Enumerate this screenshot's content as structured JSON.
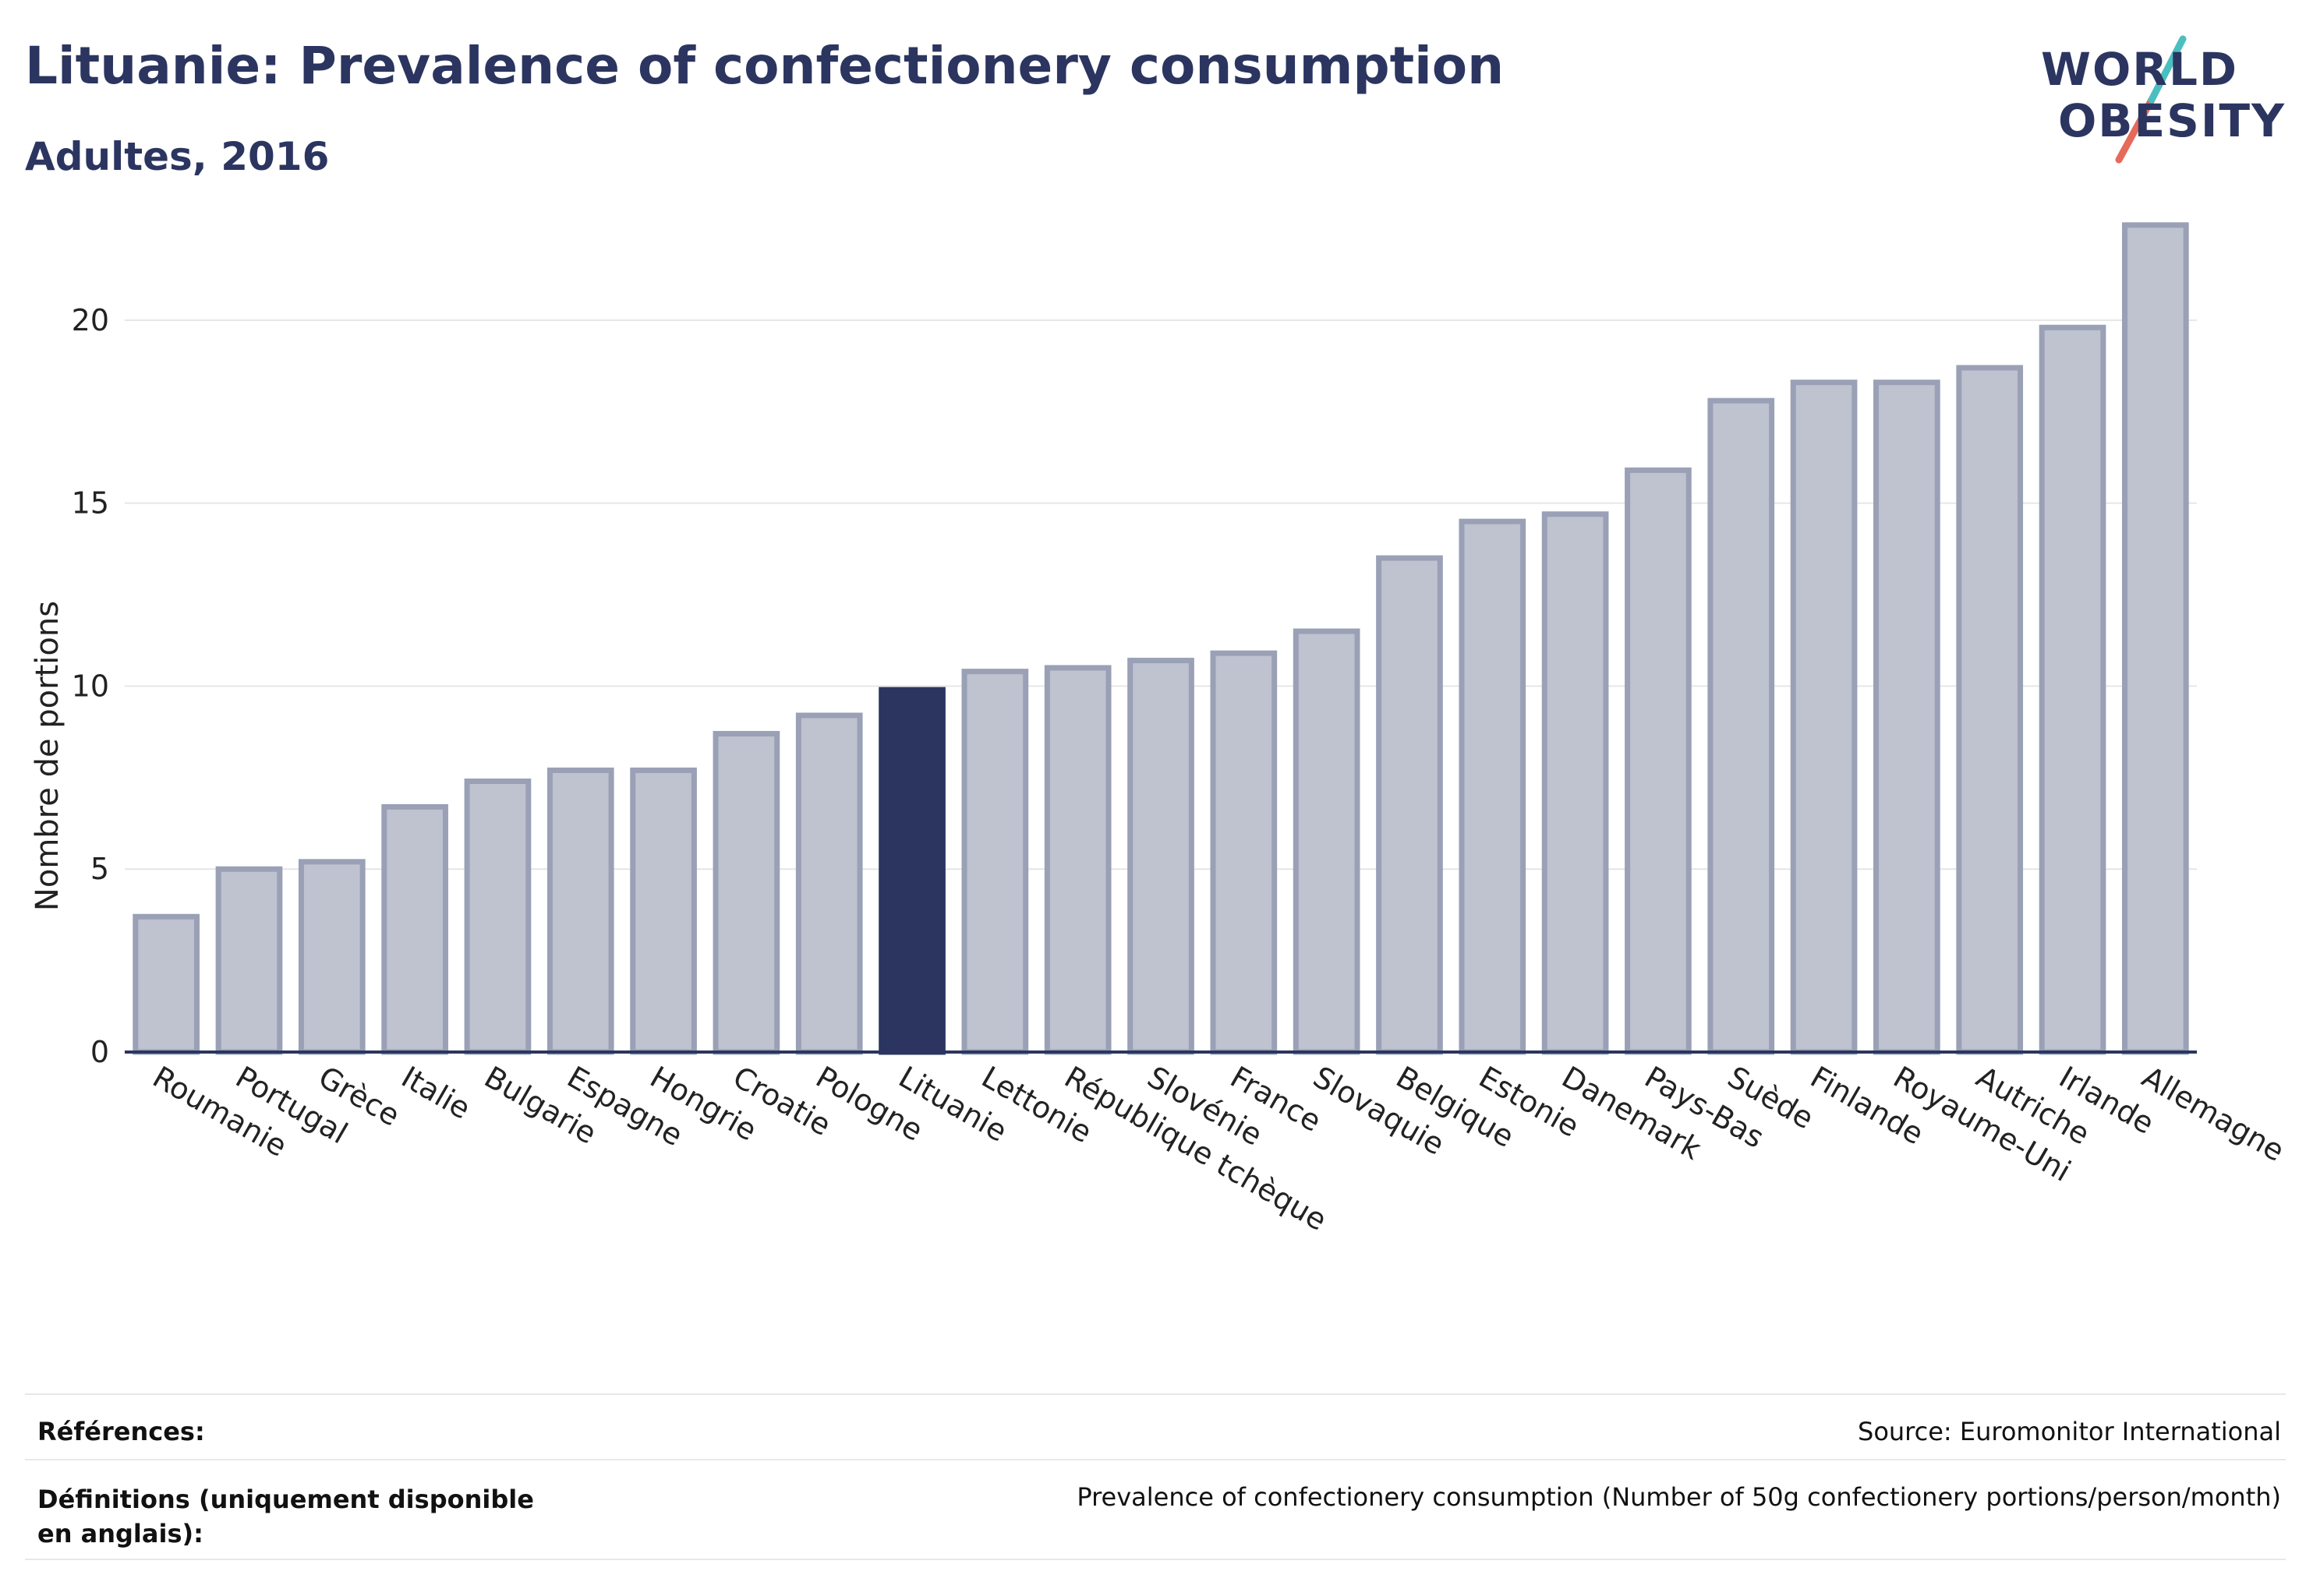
{
  "header": {
    "title": "Lituanie: Prevalence of confectionery consumption",
    "subtitle": "Adultes, 2016"
  },
  "logo": {
    "line1": "WORLD",
    "line2": "OBESITY",
    "slash_colors": [
      "#4bbfbf",
      "#e56a5a"
    ]
  },
  "colors": {
    "bar": "#bfc2cf",
    "bar_border": "#9aa0b5",
    "highlight": "#2b3560",
    "axis": "#2b3560",
    "grid": "#e6e6e6"
  },
  "chart_data": {
    "type": "bar",
    "ylabel": "Nombre de portions",
    "ylim": [
      0,
      23
    ],
    "yticks": [
      0,
      5,
      10,
      15,
      20
    ],
    "grid": true,
    "highlight": "Lituanie",
    "categories": [
      "Roumanie",
      "Portugal",
      "Grèce",
      "Italie",
      "Bulgarie",
      "Espagne",
      "Hongrie",
      "Croatie",
      "Pologne",
      "Lituanie",
      "Lettonie",
      "République tchèque",
      "Slovénie",
      "France",
      "Slovaquie",
      "Belgique",
      "Estonie",
      "Danemark",
      "Pays-Bas",
      "Suède",
      "Finlande",
      "Royaume-Uni",
      "Autriche",
      "Irlande",
      "Allemagne"
    ],
    "values": [
      3.7,
      5.0,
      5.2,
      6.7,
      7.4,
      7.7,
      7.7,
      8.7,
      9.2,
      9.9,
      10.4,
      10.5,
      10.7,
      10.9,
      11.5,
      13.5,
      14.5,
      14.7,
      15.9,
      17.8,
      18.3,
      18.3,
      18.7,
      19.8,
      22.6
    ]
  },
  "footer": {
    "references_label": "Références:",
    "references_value": "Source: Euromonitor International",
    "definitions_label": "Définitions (uniquement disponible en anglais):",
    "definitions_value": "Prevalence of confectionery consumption (Number of 50g confectionery portions/person/month)"
  }
}
